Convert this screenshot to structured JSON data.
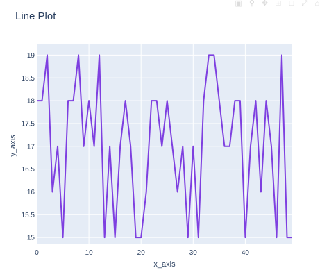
{
  "chart_data": {
    "type": "line",
    "title": "Line Plot",
    "xlabel": "x_axis",
    "ylabel": "y_axis",
    "xlim": [
      0,
      49
    ],
    "ylim": [
      14.85,
      19.25
    ],
    "x_ticks": [
      0,
      10,
      20,
      30,
      40
    ],
    "y_ticks": [
      15,
      15.5,
      16,
      16.5,
      17,
      17.5,
      18,
      18.5,
      19
    ],
    "x_tick_labels": [
      "0",
      "10",
      "20",
      "30",
      "40"
    ],
    "y_tick_labels": [
      "15",
      "15.5",
      "16",
      "16.5",
      "17",
      "17.5",
      "18",
      "18.5",
      "19"
    ],
    "grid": true,
    "series": [
      {
        "color": "#7e3fe0",
        "x": [
          0,
          1,
          2,
          3,
          4,
          5,
          6,
          7,
          8,
          9,
          10,
          11,
          12,
          13,
          14,
          15,
          16,
          17,
          18,
          19,
          20,
          21,
          22,
          23,
          24,
          25,
          26,
          27,
          28,
          29,
          30,
          31,
          32,
          33,
          34,
          35,
          36,
          37,
          38,
          39,
          40,
          41,
          42,
          43,
          44,
          45,
          46,
          47,
          48,
          49
        ],
        "y": [
          18,
          18,
          19,
          16,
          17,
          15,
          18,
          18,
          19,
          17,
          18,
          17,
          19,
          15,
          17,
          15,
          17,
          18,
          17,
          15,
          15,
          16,
          18,
          18,
          17,
          18,
          17,
          16,
          17,
          15,
          17,
          15,
          18,
          19,
          19,
          18,
          17,
          17,
          18,
          18,
          15,
          17,
          18,
          16,
          18,
          17,
          15,
          19,
          15,
          15
        ]
      }
    ]
  },
  "modebar": {
    "icons": [
      "camera-icon",
      "zoom-icon",
      "pan-icon",
      "zoom-in-icon",
      "zoom-out-icon",
      "autoscale-icon",
      "reset-icon"
    ]
  }
}
